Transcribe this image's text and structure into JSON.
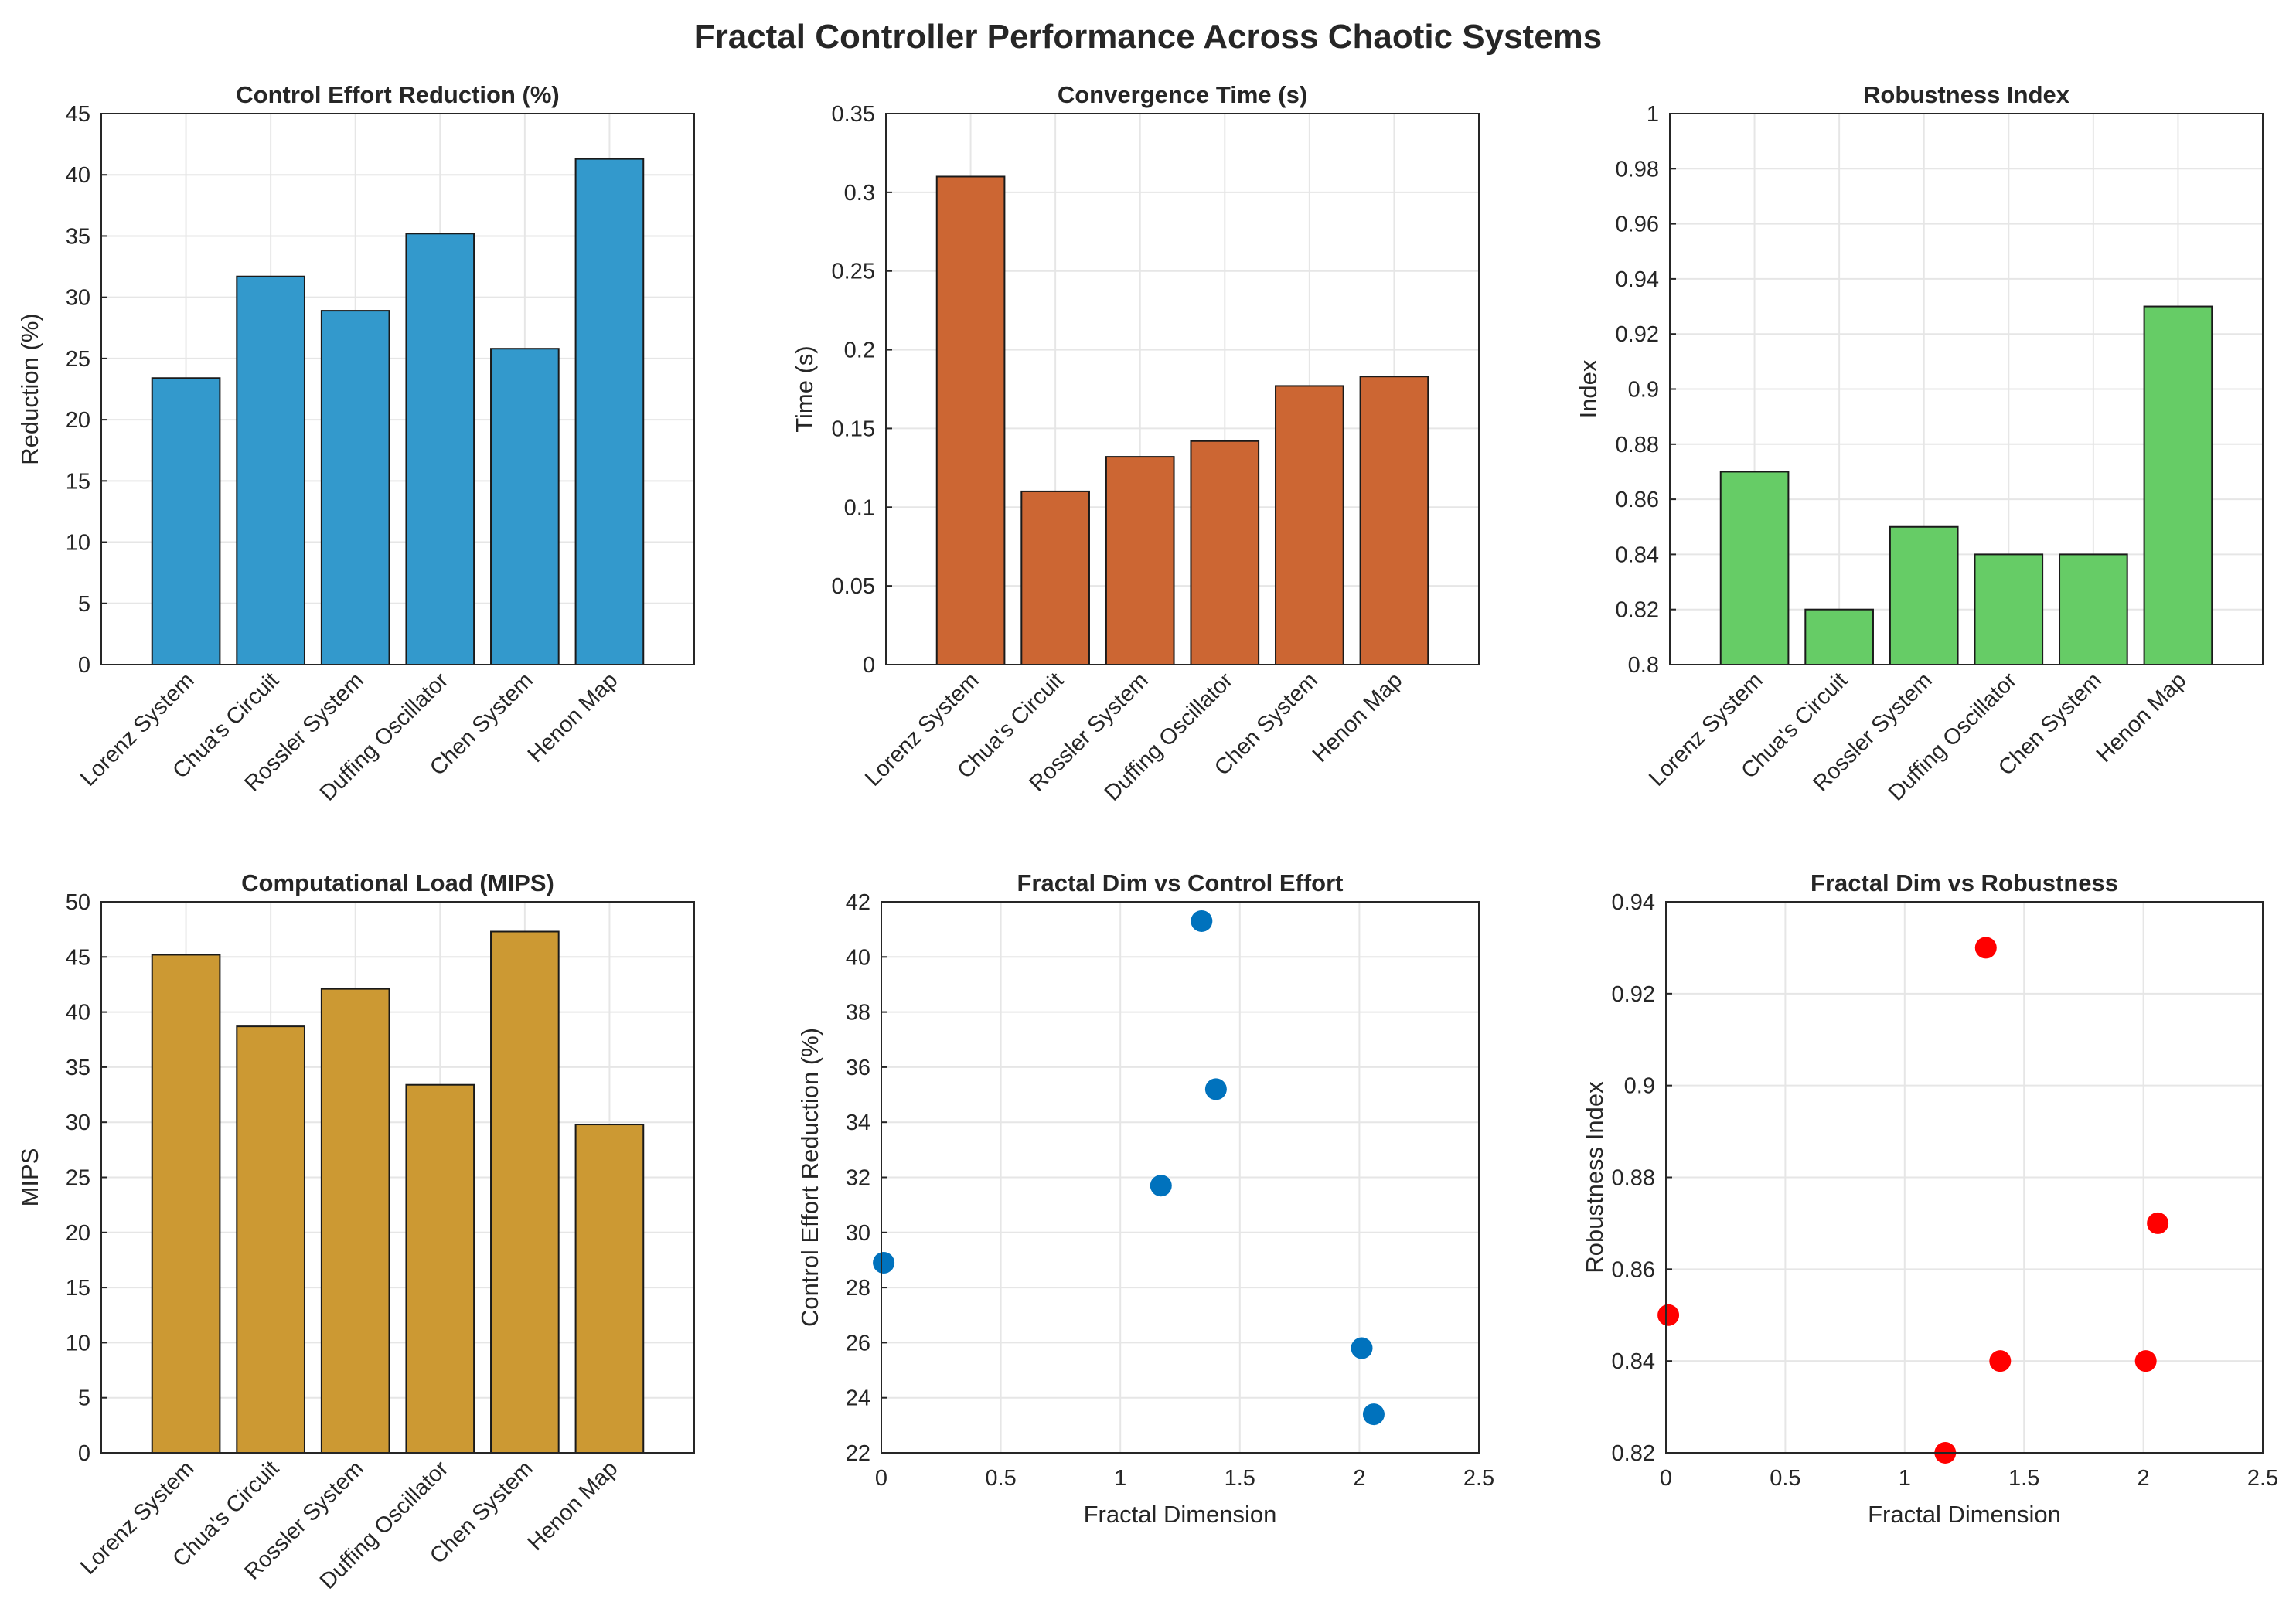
{
  "figure": {
    "title": "Fractal Controller Performance Across Chaotic Systems"
  },
  "chart_data": [
    {
      "type": "bar",
      "title": "Control Effort Reduction (%)",
      "xlabel": "",
      "ylabel": "Reduction (%)",
      "categories": [
        "Lorenz System",
        "Chua's Circuit",
        "Rossler System",
        "Duffing Oscillator",
        "Chen System",
        "Henon Map"
      ],
      "values": [
        23.4,
        31.7,
        28.9,
        35.2,
        25.8,
        41.3
      ],
      "ylim": [
        0,
        45
      ],
      "yticks": [
        0,
        5,
        10,
        15,
        20,
        25,
        30,
        35,
        40,
        45
      ],
      "color": "#3399CC",
      "grid": true
    },
    {
      "type": "bar",
      "title": "Convergence Time (s)",
      "xlabel": "",
      "ylabel": "Time (s)",
      "categories": [
        "Lorenz System",
        "Chua's Circuit",
        "Rossler System",
        "Duffing Oscillator",
        "Chen System",
        "Henon Map"
      ],
      "values": [
        0.31,
        0.11,
        0.132,
        0.142,
        0.177,
        0.183
      ],
      "ylim": [
        0,
        0.35
      ],
      "yticks": [
        0,
        0.05,
        0.1,
        0.15,
        0.2,
        0.25,
        0.3,
        0.35
      ],
      "color": "#CC6633",
      "grid": true
    },
    {
      "type": "bar",
      "title": "Robustness Index",
      "xlabel": "",
      "ylabel": "Index",
      "categories": [
        "Lorenz System",
        "Chua's Circuit",
        "Rossler System",
        "Duffing Oscillator",
        "Chen System",
        "Henon Map"
      ],
      "values": [
        0.87,
        0.82,
        0.85,
        0.84,
        0.84,
        0.93
      ],
      "ylim": [
        0.8,
        1
      ],
      "yticks": [
        0.8,
        0.82,
        0.84,
        0.86,
        0.88,
        0.9,
        0.92,
        0.94,
        0.96,
        0.98,
        1
      ],
      "color": "#66CC66",
      "grid": true
    },
    {
      "type": "bar",
      "title": "Computational Load (MIPS)",
      "xlabel": "",
      "ylabel": "MIPS",
      "categories": [
        "Lorenz System",
        "Chua's Circuit",
        "Rossler System",
        "Duffing Oscillator",
        "Chen System",
        "Henon Map"
      ],
      "values": [
        45.2,
        38.7,
        42.1,
        33.4,
        47.3,
        29.8
      ],
      "ylim": [
        0,
        50
      ],
      "yticks": [
        0,
        5,
        10,
        15,
        20,
        25,
        30,
        35,
        40,
        45,
        50
      ],
      "color": "#CC9933",
      "grid": true
    },
    {
      "type": "scatter",
      "title": "Fractal Dim vs Control Effort",
      "xlabel": "Fractal Dimension",
      "ylabel": "Control Effort Reduction (%)",
      "x": [
        2.06,
        1.17,
        0.01,
        1.4,
        2.01,
        1.34
      ],
      "y": [
        23.4,
        31.7,
        28.9,
        35.2,
        25.8,
        41.3
      ],
      "xlim": [
        0,
        2.5
      ],
      "ylim": [
        22,
        42
      ],
      "xticks": [
        0,
        0.5,
        1,
        1.5,
        2,
        2.5
      ],
      "yticks": [
        22,
        24,
        26,
        28,
        30,
        32,
        34,
        36,
        38,
        40,
        42
      ],
      "color": "#0072BD",
      "grid": true
    },
    {
      "type": "scatter",
      "title": "Fractal Dim vs Robustness",
      "xlabel": "Fractal Dimension",
      "ylabel": "Robustness Index",
      "x": [
        2.06,
        1.17,
        0.01,
        1.4,
        2.01,
        1.34
      ],
      "y": [
        0.87,
        0.82,
        0.85,
        0.84,
        0.84,
        0.93
      ],
      "xlim": [
        0,
        2.5
      ],
      "ylim": [
        0.82,
        0.94
      ],
      "xticks": [
        0,
        0.5,
        1,
        1.5,
        2,
        2.5
      ],
      "yticks": [
        0.82,
        0.84,
        0.86,
        0.88,
        0.9,
        0.92,
        0.94
      ],
      "color": "#FF0000",
      "grid": true
    }
  ]
}
